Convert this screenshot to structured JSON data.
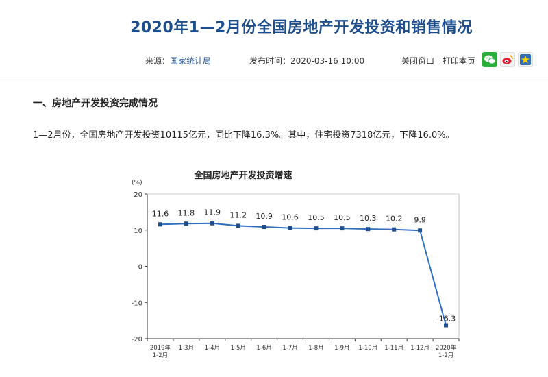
{
  "article": {
    "title": "2020年1—2月份全国房地产开发投资和销售情况",
    "source_label": "来源：",
    "source_name": "国家统计局",
    "time_label": "发布时间：",
    "time_value": "2020-03-16 10:00",
    "close_window": "关闭窗口",
    "print_page": "打印本页",
    "share_icons": [
      "wechat-icon",
      "weibo-icon",
      "favorite-star-icon"
    ],
    "section_heading": "一、房地产开发投资完成情况",
    "paragraph": "1—2月份，全国房地产开发投资10115亿元，同比下降16.3%。其中，住宅投资7318亿元，下降16.0%。"
  },
  "colors": {
    "title": "#1f4e8c",
    "series": "#2e6fc2",
    "marker": "#1f4e8c"
  },
  "chart_data": {
    "type": "line",
    "title": "全国房地产开发投资增速",
    "ylabel": "(%)",
    "ylim": [
      -20,
      20
    ],
    "yticks": [
      "20",
      "10",
      "0",
      "-10",
      "-20"
    ],
    "categories": [
      [
        "2019年",
        "1-2月"
      ],
      [
        "1-3月"
      ],
      [
        "1-4月"
      ],
      [
        "1-5月"
      ],
      [
        "1-6月"
      ],
      [
        "1-7月"
      ],
      [
        "1-8月"
      ],
      [
        "1-9月"
      ],
      [
        "1-10月"
      ],
      [
        "1-11月"
      ],
      [
        "1-12月"
      ],
      [
        "2020年",
        "1-2月"
      ]
    ],
    "series": [
      {
        "values": [
          11.6,
          11.8,
          11.9,
          11.2,
          10.9,
          10.6,
          10.5,
          10.5,
          10.3,
          10.2,
          9.9,
          -16.3
        ]
      }
    ],
    "data_labels": [
      "11.6",
      "11.8",
      "11.9",
      "11.2",
      "10.9",
      "10.6",
      "10.5",
      "10.5",
      "10.3",
      "10.2",
      "9.9",
      "-16.3"
    ],
    "grid": false,
    "legend": "none"
  }
}
